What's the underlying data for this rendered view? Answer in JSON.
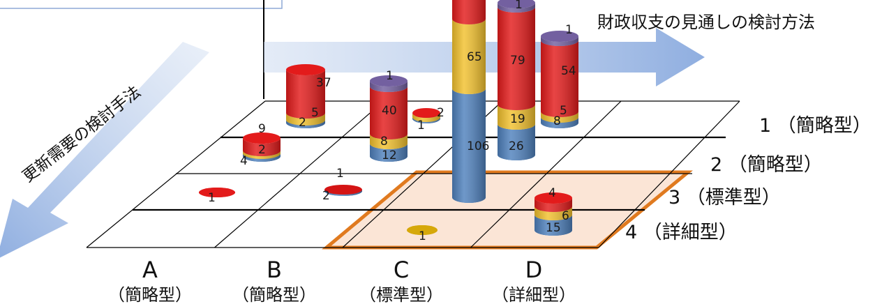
{
  "chart_data": {
    "type": "bar",
    "x_axis_title": "財政収支の見通しの検討方法",
    "y_axis_title": "更新需要の検討手法",
    "x_categories": [
      {
        "letter": "A",
        "type": "（簡略型）"
      },
      {
        "letter": "B",
        "type": "（簡略型）"
      },
      {
        "letter": "C",
        "type": "（標準型）"
      },
      {
        "letter": "D",
        "type": "（詳細型）"
      }
    ],
    "y_categories": [
      "1 （簡略型）",
      "2 （簡略型）",
      "3 （標準型）",
      "4 （詳細型）"
    ],
    "series": [
      {
        "color": "#4f81bd"
      },
      {
        "color": "#f2c12e"
      },
      {
        "color": "#e31b1b"
      },
      {
        "color": "#7360a0"
      }
    ],
    "bars": [
      {
        "x": "B",
        "y": 1,
        "labels": [
          "2",
          "5",
          "37"
        ]
      },
      {
        "x": "A",
        "y": 2,
        "labels": [
          "4",
          "2",
          "9"
        ]
      },
      {
        "x": "C",
        "y": 1,
        "labels": [
          "12",
          "8",
          "40",
          "1"
        ]
      },
      {
        "x": "C",
        "y": 1,
        "labels": [
          "1",
          "2"
        ]
      },
      {
        "x": "D",
        "y": 1,
        "labels": [
          "106",
          "65"
        ]
      },
      {
        "x": "D",
        "y": 1,
        "labels": [
          "26",
          "19",
          "79",
          "1"
        ]
      },
      {
        "x": "D",
        "y": 1,
        "labels": [
          "8",
          "5",
          "54",
          "1"
        ]
      },
      {
        "x": "A",
        "y": 3,
        "labels": [
          "1"
        ]
      },
      {
        "x": "B",
        "y": 3,
        "labels": [
          "2",
          "1"
        ]
      },
      {
        "x": "D",
        "y": 3,
        "labels": [
          "15",
          "6",
          "4"
        ]
      },
      {
        "x": "C",
        "y": 4,
        "labels": [
          "1"
        ]
      }
    ]
  }
}
